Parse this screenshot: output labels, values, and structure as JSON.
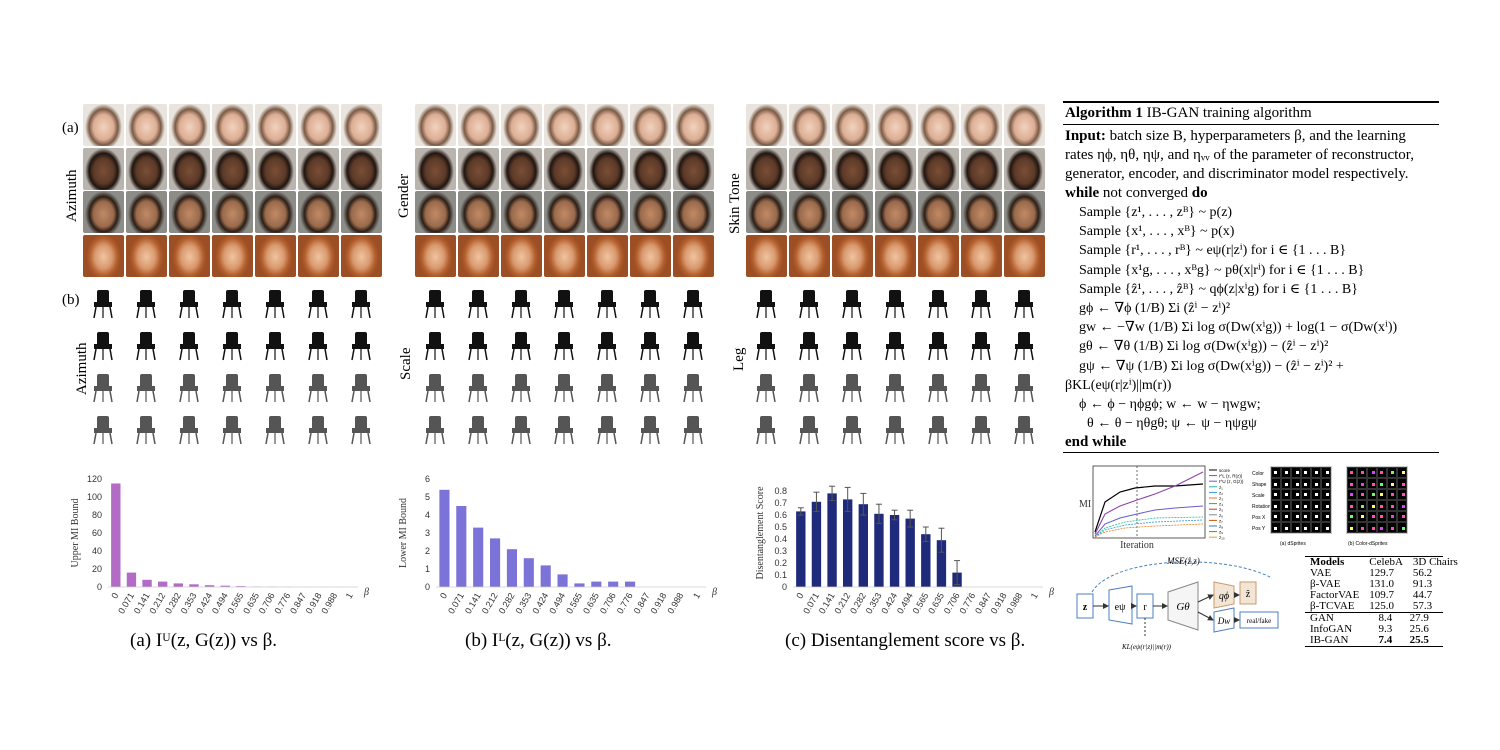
{
  "face_panel": {
    "label": "(a)",
    "groups": [
      {
        "axis_label": "Azimuth"
      },
      {
        "axis_label": "Gender"
      },
      {
        "axis_label": "Skin Tone"
      }
    ]
  },
  "chair_panel": {
    "label": "(b)",
    "groups": [
      {
        "axis_label": "Azimuth"
      },
      {
        "axis_label": "Scale"
      },
      {
        "axis_label": "Leg"
      }
    ]
  },
  "chart_data": [
    {
      "type": "bar",
      "color": "#b26cc6",
      "categories": [
        "0",
        "0.071",
        "0.141",
        "0.212",
        "0.282",
        "0.353",
        "0.424",
        "0.494",
        "0.565",
        "0.635",
        "0.706",
        "0.776",
        "0.847",
        "0.918",
        "0.988",
        "1"
      ],
      "values": [
        115,
        16,
        8,
        6,
        4,
        3,
        2,
        1.5,
        1,
        0.5,
        0.3,
        0.2,
        0.1,
        0.1,
        0.1,
        0.1
      ],
      "ylim": [
        0,
        120
      ],
      "yticks": [
        "0",
        "20",
        "40",
        "60",
        "80",
        "100",
        "120"
      ],
      "ylabel": "Upper MI Bound",
      "xvar": "β",
      "caption": "(a) Iᵁ(z, G(z)) vs β."
    },
    {
      "type": "bar",
      "color": "#7c73d9",
      "categories": [
        "0",
        "0.071",
        "0.141",
        "0.212",
        "0.282",
        "0.353",
        "0.424",
        "0.494",
        "0.565",
        "0.635",
        "0.706",
        "0.776",
        "0.847",
        "0.918",
        "0.988",
        "1"
      ],
      "values": [
        5.4,
        4.5,
        3.3,
        2.7,
        2.1,
        1.6,
        1.2,
        0.7,
        0.2,
        0.3,
        0.3,
        0.3,
        0,
        0,
        0,
        0
      ],
      "ylim": [
        0,
        6
      ],
      "yticks": [
        "0",
        "1",
        "2",
        "3",
        "4",
        "5",
        "6"
      ],
      "ylabel": "Lower MI Bound",
      "xvar": "β",
      "caption": "(b) Iᴸ(z, G(z)) vs β."
    },
    {
      "type": "bar",
      "color": "#1f2a7a",
      "categories": [
        "0",
        "0.071",
        "0.141",
        "0.212",
        "0.282",
        "0.353",
        "0.424",
        "0.494",
        "0.565",
        "0.635",
        "0.706",
        "0.776",
        "0.847",
        "0.918",
        "0.988",
        "1"
      ],
      "values": [
        0.63,
        0.71,
        0.78,
        0.73,
        0.69,
        0.61,
        0.6,
        0.57,
        0.44,
        0.39,
        0.12,
        0,
        0,
        0,
        0,
        0
      ],
      "errors": [
        0.03,
        0.08,
        0.06,
        0.1,
        0.09,
        0.08,
        0.04,
        0.07,
        0.06,
        0.1,
        0.1,
        0,
        0,
        0,
        0,
        0
      ],
      "ylim": [
        0,
        0.9
      ],
      "yticks": [
        "0",
        "0.1",
        "0.2",
        "0.3",
        "0.4",
        "0.5",
        "0.6",
        "0.7",
        "0.8"
      ],
      "ylabel": "Disentanglement Score",
      "xvar": "β",
      "caption": "(c) Disentanglement score vs β."
    }
  ],
  "algorithm": {
    "title_bold": "Algorithm 1",
    "title_rest": "IB-GAN training algorithm",
    "input_bold": "Input:",
    "input_text_1": "batch size B, hyperparameters β, and the learning",
    "input_text_2": "rates ηϕ, ηθ, ηψ, and ηᵥᵥ of the parameter of reconstructor,",
    "input_text_3": "generator, encoder, and discriminator model respectively.",
    "while_kw": "while",
    "while_cond": "not converged",
    "do_kw": "do",
    "lines": [
      "Sample {z¹, . . . , zᴮ} ~ p(z)",
      "Sample {x¹, . . . , xᴮ} ~ p(x)",
      "Sample {r¹, . . . , rᴮ} ~ eψ(r|zⁱ) for i ∈ {1 . . . B}",
      "Sample {x¹g, . . . , xᴮg} ~ pθ(x|rⁱ) for i ∈ {1 . . . B}",
      "Sample {ẑ¹, . . . , ẑᴮ} ~ qϕ(z|xⁱg) for i ∈ {1 . . . B}",
      "gϕ ← ∇ϕ (1/B) Σi (ẑⁱ − zⁱ)²",
      "gw ← −∇w (1/B) Σi log σ(Dw(xⁱg)) + log(1 − σ(Dw(xⁱ))",
      "gθ ← ∇θ (1/B) Σi log σ(Dw(xⁱg)) − (ẑⁱ − zⁱ)²",
      "gψ ← ∇ψ (1/B) Σi log σ(Dw(xⁱg)) − (ẑⁱ − zⁱ)² +",
      "βKL(eψ(r|zⁱ)||m(r))",
      "ϕ ← ϕ − ηϕgϕ;  w ← w − ηwgw;",
      "θ ← θ − ηθgθ;  ψ ← ψ − ηψgψ"
    ],
    "end_kw": "end while"
  },
  "mi_plot": {
    "ylabel": "MI",
    "xlabel": "Iteration",
    "legend": [
      "score",
      "I^L (z, R(z))",
      "I^U (z, G(z))",
      "z₁",
      "z₂",
      "z₃",
      "z₄",
      "z₅",
      "z₆",
      "z₇",
      "z₈",
      "z₉",
      "z₁₀"
    ]
  },
  "dsprites": {
    "row_labels": [
      "Color",
      "Shape",
      "Scale",
      "Rotation",
      "Pos X",
      "Pos Y"
    ],
    "caption_a": "(a) dSprites",
    "caption_b": "(b) Color-dSprites"
  },
  "diagram": {
    "mse_label": "MSE(ẑ,z)",
    "kl_label": "KL(eψ(r|z)||m(r))",
    "z": "z",
    "e": "eψ",
    "r": "r",
    "g": "Gθ",
    "q": "qϕ",
    "zhat": "ẑ",
    "d": "Dw",
    "realfake": "real/fake"
  },
  "results_table": {
    "headers": [
      "Models",
      "CelebA",
      "3D Chairs"
    ],
    "group1": [
      [
        "VAE",
        "129.7",
        "56.2"
      ],
      [
        "β-VAE",
        "131.0",
        "91.3"
      ],
      [
        "FactorVAE",
        "109.7",
        "44.7"
      ],
      [
        "β-TCVAE",
        "125.0",
        "57.3"
      ]
    ],
    "group2": [
      [
        "GAN",
        "8.4",
        "27.9"
      ],
      [
        "InfoGAN",
        "9.3",
        "25.6"
      ],
      [
        "IB-GAN",
        "7.4",
        "25.5"
      ]
    ]
  }
}
